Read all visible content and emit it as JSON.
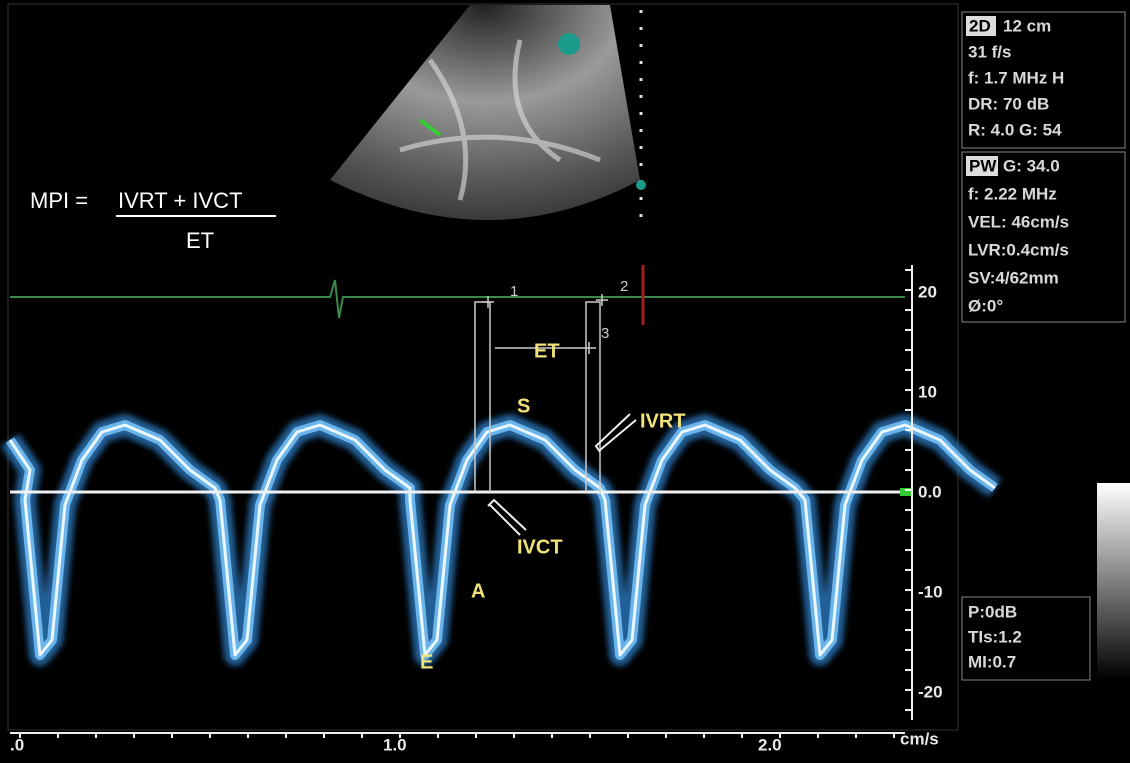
{
  "panel_2d": {
    "mode": "2D",
    "depth": "12 cm",
    "lines": [
      "31 f/s",
      "f: 1.7 MHz H",
      "DR: 70 dB",
      "R: 4.0   G: 54"
    ]
  },
  "panel_pw": {
    "mode": "PW",
    "gain": "G: 34.0",
    "lines": [
      "f: 2.22 MHz",
      "VEL: 46cm/s",
      "LVR:0.4cm/s",
      "SV:4/62mm",
      "Ø:0°"
    ]
  },
  "panel_safety": {
    "lines": [
      "P:0dB",
      "TIs:1.2",
      "MI:0.7"
    ]
  },
  "formula": {
    "lhs": "MPI =",
    "numerator": "IVRT + IVCT",
    "denominator": "ET"
  },
  "velocity_scale": {
    "ticks": [
      "20",
      "10",
      "0.0",
      "-10",
      "-20"
    ],
    "unit": "cm/s"
  },
  "time_scale": {
    "ticks": [
      ".0",
      "1.0",
      "2.0"
    ]
  },
  "annotations": {
    "et": "ET",
    "s": "S",
    "ivrt": "IVRT",
    "ivct": "IVCT",
    "a": "A",
    "e": "E",
    "calipers": [
      "1",
      "2",
      "3"
    ]
  }
}
